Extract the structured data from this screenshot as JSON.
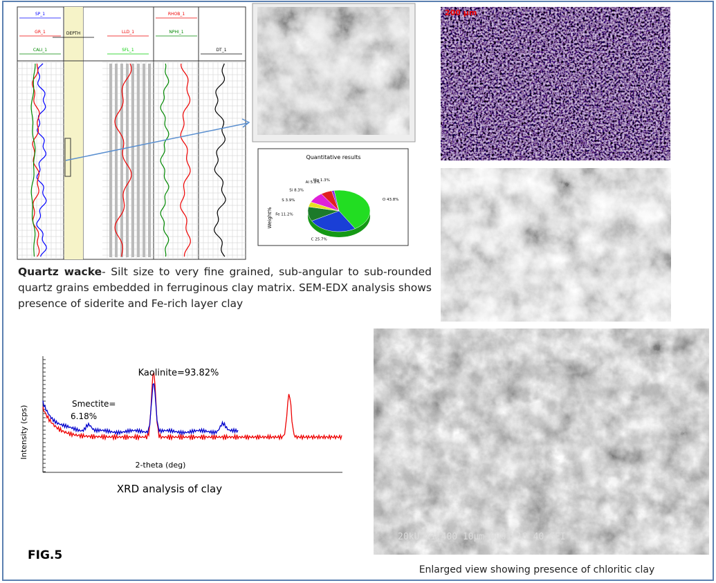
{
  "figure_label": "FIG.5",
  "well_log": {
    "track_headers": [
      "SP_1",
      "GR_1",
      "CALI_1",
      "DEPTH",
      "LLD_1",
      "SFL_1",
      "RHOB_1",
      "NPHI_1",
      "DT_1"
    ]
  },
  "edx": {
    "title": "Quantitative results",
    "axis_label": "Weight%",
    "slices": [
      {
        "label": "O 43.8%",
        "value": 43.8,
        "color": "#22dd22"
      },
      {
        "label": "C 25.7%",
        "value": 25.7,
        "color": "#1a3fd6"
      },
      {
        "label": "Fe 11.2%",
        "value": 11.2,
        "color": "#1c7a2a"
      },
      {
        "label": "S 3.9%",
        "value": 3.9,
        "color": "#e8e020"
      },
      {
        "label": "Si 8.3%",
        "value": 8.3,
        "color": "#e020d8"
      },
      {
        "label": "Al 5.8%",
        "value": 5.8,
        "color": "#e02020"
      },
      {
        "label": "Mg 1.3%",
        "value": 1.3,
        "color": "#8a2be2"
      }
    ]
  },
  "thin_section": {
    "scale": "200 µm"
  },
  "description": {
    "term": "Quartz wacke",
    "text": "- Silt size to very fine grained, sub-angular to sub-rounded quartz grains embedded in ferruginous clay matrix. SEM-EDX analysis shows presence of  siderite and Fe-rich layer clay"
  },
  "xrd": {
    "peak_label": "Kaolinite=93.82%",
    "secondary_label": [
      "Smectite=",
      "6.18%"
    ],
    "y_label": "Intensity (cps)",
    "x_label": "2-theta (deg)",
    "caption": "XRD analysis of clay"
  },
  "sem_large": {
    "info": "20kU   X1,400   10µm  0001 18 40 SEI",
    "caption": "Enlarged view showing presence of chloritic clay"
  }
}
